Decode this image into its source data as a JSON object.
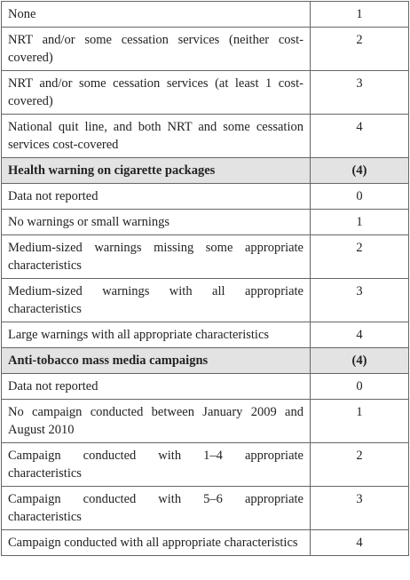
{
  "table": {
    "groups": [
      {
        "rows": [
          [
            "None",
            1
          ],
          [
            "NRT and/or some cessation services (neither cost-covered)",
            2
          ],
          [
            "NRT and/or some cessation services (at least 1 cost-covered)",
            3
          ],
          [
            "National quit line, and both NRT and some cessation services cost-covered",
            4
          ]
        ]
      },
      {
        "title": "Health warning on cigarette packages",
        "score": "(4)",
        "rows": [
          [
            "Data not reported",
            0
          ],
          [
            "No warnings or small warnings",
            1
          ],
          [
            "Medium-sized warnings missing some appropriate characteristics",
            2
          ],
          [
            "Medium-sized warnings with all appropriate characteristics",
            3
          ],
          [
            "Large warnings with all appropriate characteristics",
            4
          ]
        ]
      },
      {
        "title": "Anti-tobacco mass media campaigns",
        "score": "(4)",
        "rows": [
          [
            "Data not reported",
            0
          ],
          [
            "No campaign conducted between January 2009 and August 2010",
            1
          ],
          [
            "Campaign conducted with 1–4 appropriate characteristics",
            2
          ],
          [
            "Campaign conducted with 5–6 appropriate characteristics",
            3
          ],
          [
            "Campaign conducted with all appropriate characteristics",
            4
          ]
        ]
      }
    ]
  }
}
